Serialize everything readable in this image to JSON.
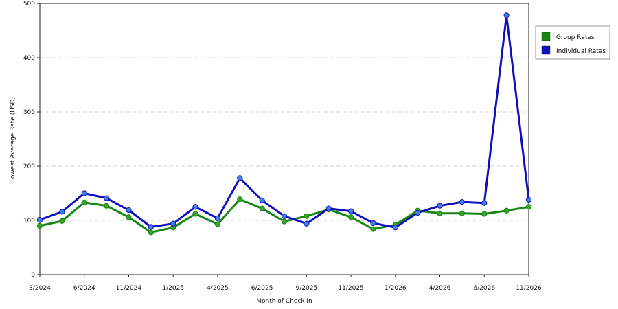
{
  "chart_data": {
    "type": "line",
    "title": "",
    "xlabel": "Month of Check In",
    "ylabel": "Lowest Average Rate (USD)",
    "ylim": [
      0,
      500
    ],
    "yticks": [
      0,
      100,
      200,
      300,
      400,
      500
    ],
    "x_tick_labels": [
      "3/2024",
      "6/2024",
      "11/2024",
      "1/2025",
      "4/2025",
      "6/2025",
      "9/2025",
      "11/2025",
      "1/2026",
      "4/2026",
      "6/2026",
      "11/2026"
    ],
    "grid": "horizontal dashed",
    "legend_position": "right",
    "series": [
      {
        "name": "Group Rates",
        "color": "#138613",
        "marker_color": "#3f9f2f",
        "values": [
          90,
          99,
          133,
          127,
          106,
          78,
          87,
          112,
          93,
          139,
          122,
          98,
          108,
          120,
          106,
          84,
          92,
          118,
          113,
          113,
          112,
          118,
          125
        ]
      },
      {
        "name": "Individual Rates",
        "color": "#0f0fbe",
        "marker_color": "#3f7fe6",
        "values": [
          101,
          116,
          150,
          141,
          119,
          88,
          94,
          125,
          104,
          178,
          137,
          108,
          94,
          122,
          117,
          95,
          87,
          114,
          127,
          134,
          132,
          478,
          138
        ]
      }
    ]
  }
}
